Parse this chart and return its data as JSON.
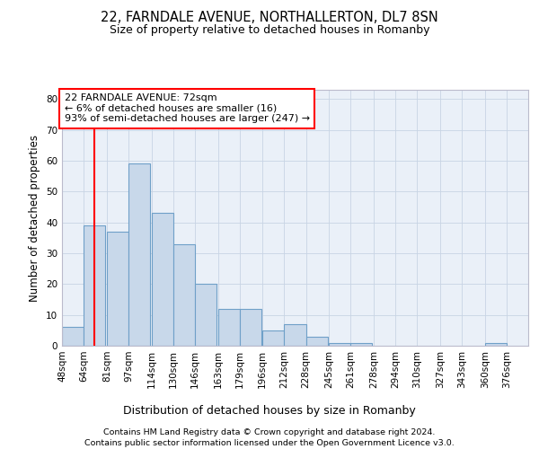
{
  "title": "22, FARNDALE AVENUE, NORTHALLERTON, DL7 8SN",
  "subtitle": "Size of property relative to detached houses in Romanby",
  "xlabel": "Distribution of detached houses by size in Romanby",
  "ylabel": "Number of detached properties",
  "footer_line1": "Contains HM Land Registry data © Crown copyright and database right 2024.",
  "footer_line2": "Contains public sector information licensed under the Open Government Licence v3.0.",
  "bar_left_edges": [
    48,
    64,
    81,
    97,
    114,
    130,
    146,
    163,
    179,
    196,
    212,
    228,
    245,
    261,
    278,
    294,
    310,
    327,
    343,
    360
  ],
  "bar_heights": [
    6,
    39,
    37,
    59,
    43,
    33,
    20,
    12,
    12,
    5,
    7,
    3,
    1,
    1,
    0,
    0,
    0,
    0,
    0,
    1
  ],
  "bin_width": 16,
  "bar_color": "#c8d8ea",
  "bar_edge_color": "#6fa0c8",
  "grid_color": "#c8d4e4",
  "bg_color": "#eaf0f8",
  "vline_x": 72,
  "vline_color": "red",
  "annotation_text": "22 FARNDALE AVENUE: 72sqm\n← 6% of detached houses are smaller (16)\n93% of semi-detached houses are larger (247) →",
  "annotation_box_color": "white",
  "annotation_box_edge_color": "red",
  "xlim": [
    48,
    392
  ],
  "ylim": [
    0,
    83
  ],
  "yticks": [
    0,
    10,
    20,
    30,
    40,
    50,
    60,
    70,
    80
  ],
  "xtick_labels": [
    "48sqm",
    "64sqm",
    "81sqm",
    "97sqm",
    "114sqm",
    "130sqm",
    "146sqm",
    "163sqm",
    "179sqm",
    "196sqm",
    "212sqm",
    "228sqm",
    "245sqm",
    "261sqm",
    "278sqm",
    "294sqm",
    "310sqm",
    "327sqm",
    "343sqm",
    "360sqm",
    "376sqm"
  ],
  "xtick_positions": [
    48,
    64,
    81,
    97,
    114,
    130,
    146,
    163,
    179,
    196,
    212,
    228,
    245,
    261,
    278,
    294,
    310,
    327,
    343,
    360,
    376
  ],
  "title_fontsize": 10.5,
  "subtitle_fontsize": 9,
  "ylabel_fontsize": 8.5,
  "xlabel_fontsize": 9,
  "footer_fontsize": 6.8,
  "tick_fontsize": 7.5,
  "annot_fontsize": 8
}
